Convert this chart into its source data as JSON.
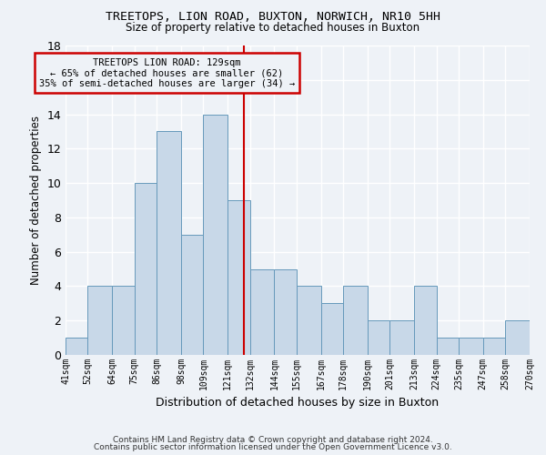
{
  "title": "TREETOPS, LION ROAD, BUXTON, NORWICH, NR10 5HH",
  "subtitle": "Size of property relative to detached houses in Buxton",
  "xlabel": "Distribution of detached houses by size in Buxton",
  "ylabel": "Number of detached properties",
  "bar_edges": [
    41,
    52,
    64,
    75,
    86,
    98,
    109,
    121,
    132,
    144,
    155,
    167,
    178,
    190,
    201,
    213,
    224,
    235,
    247,
    258,
    270
  ],
  "bar_values": [
    1,
    4,
    4,
    10,
    13,
    7,
    14,
    9,
    5,
    5,
    4,
    3,
    4,
    2,
    2,
    4,
    1,
    1,
    1,
    2
  ],
  "bar_color": "#c8d8e8",
  "bar_edgecolor": "#6699bb",
  "vline_x": 129,
  "vline_color": "#cc0000",
  "annotation_title": "TREETOPS LION ROAD: 129sqm",
  "annotation_line1": "← 65% of detached houses are smaller (62)",
  "annotation_line2": "35% of semi-detached houses are larger (34) →",
  "annotation_box_color": "#cc0000",
  "ylim": [
    0,
    18
  ],
  "yticks": [
    0,
    2,
    4,
    6,
    8,
    10,
    12,
    14,
    16,
    18
  ],
  "tick_labels": [
    "41sqm",
    "52sqm",
    "64sqm",
    "75sqm",
    "86sqm",
    "98sqm",
    "109sqm",
    "121sqm",
    "132sqm",
    "144sqm",
    "155sqm",
    "167sqm",
    "178sqm",
    "190sqm",
    "201sqm",
    "213sqm",
    "224sqm",
    "235sqm",
    "247sqm",
    "258sqm",
    "270sqm"
  ],
  "footer_line1": "Contains HM Land Registry data © Crown copyright and database right 2024.",
  "footer_line2": "Contains public sector information licensed under the Open Government Licence v3.0.",
  "background_color": "#eef2f7",
  "grid_color": "#ffffff"
}
